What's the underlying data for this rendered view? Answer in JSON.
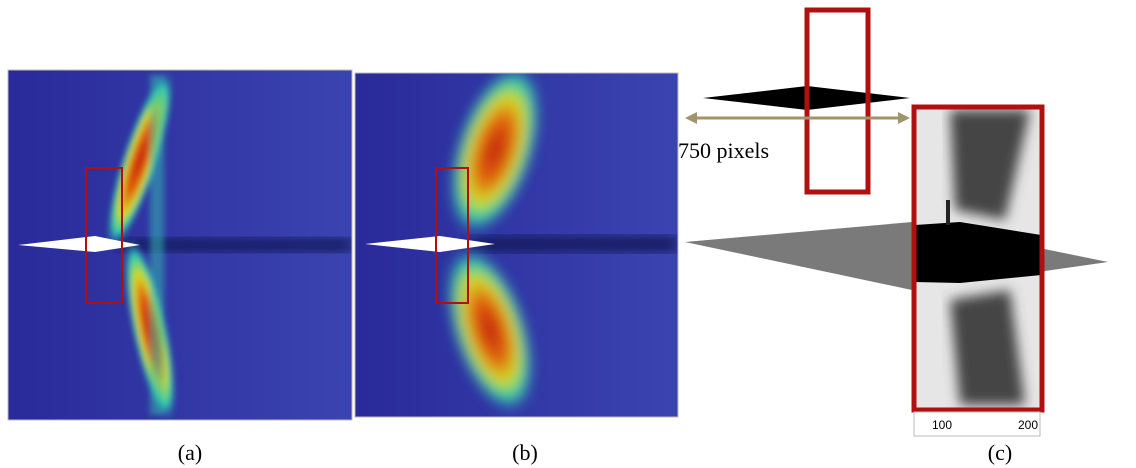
{
  "panels": [
    {
      "label": "(a)"
    },
    {
      "label": "(b)"
    },
    {
      "label": "(c)",
      "scale_label": "750 pixels",
      "axis_ticks": [
        100,
        200
      ]
    }
  ]
}
